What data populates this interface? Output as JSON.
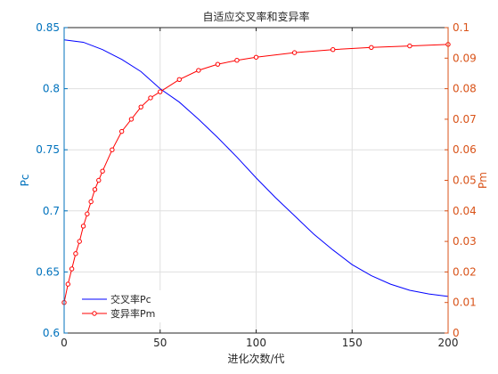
{
  "chart_data": {
    "type": "line",
    "title": "自适应交叉率和变异率",
    "xlabel": "进化次数/代",
    "ylabel_left": "Pc",
    "ylabel_right": "Pm",
    "xlim": [
      0,
      200
    ],
    "ylim_left": [
      0.6,
      0.85
    ],
    "ylim_right": [
      0,
      0.1
    ],
    "x_ticks": [
      0,
      50,
      100,
      150,
      200
    ],
    "y_left_ticks": [
      0.6,
      0.65,
      0.7,
      0.75,
      0.8,
      0.85
    ],
    "y_right_ticks": [
      0,
      0.01,
      0.02,
      0.03,
      0.04,
      0.05,
      0.06,
      0.07,
      0.08,
      0.09,
      0.1
    ],
    "grid": true,
    "legend_position": "bottom-left",
    "colors": {
      "left_axis": "#0072BD",
      "right_axis": "#D95319",
      "pc_line": "#0000FF",
      "pm_line": "#FF0000",
      "grid": "#DFDFDF",
      "text": "#262626"
    },
    "series": [
      {
        "name": "交叉率Pc",
        "axis": "left",
        "x": [
          0,
          10,
          20,
          30,
          40,
          50,
          60,
          70,
          80,
          90,
          100,
          110,
          120,
          130,
          140,
          150,
          160,
          170,
          180,
          190,
          200
        ],
        "values": [
          0.84,
          0.838,
          0.832,
          0.824,
          0.814,
          0.8,
          0.789,
          0.775,
          0.76,
          0.744,
          0.727,
          0.711,
          0.696,
          0.681,
          0.668,
          0.656,
          0.647,
          0.64,
          0.635,
          0.632,
          0.63
        ]
      },
      {
        "name": "变异率Pm",
        "axis": "right",
        "x": [
          0,
          2,
          4,
          6,
          8,
          10,
          12,
          14,
          16,
          18,
          20,
          25,
          30,
          35,
          40,
          45,
          50,
          60,
          70,
          80,
          90,
          100,
          120,
          140,
          160,
          180,
          200
        ],
        "values": [
          0.01,
          0.016,
          0.021,
          0.026,
          0.03,
          0.035,
          0.039,
          0.043,
          0.047,
          0.05,
          0.053,
          0.06,
          0.066,
          0.07,
          0.074,
          0.077,
          0.079,
          0.083,
          0.086,
          0.088,
          0.0893,
          0.0903,
          0.0918,
          0.0928,
          0.0935,
          0.094,
          0.0945
        ]
      }
    ]
  }
}
